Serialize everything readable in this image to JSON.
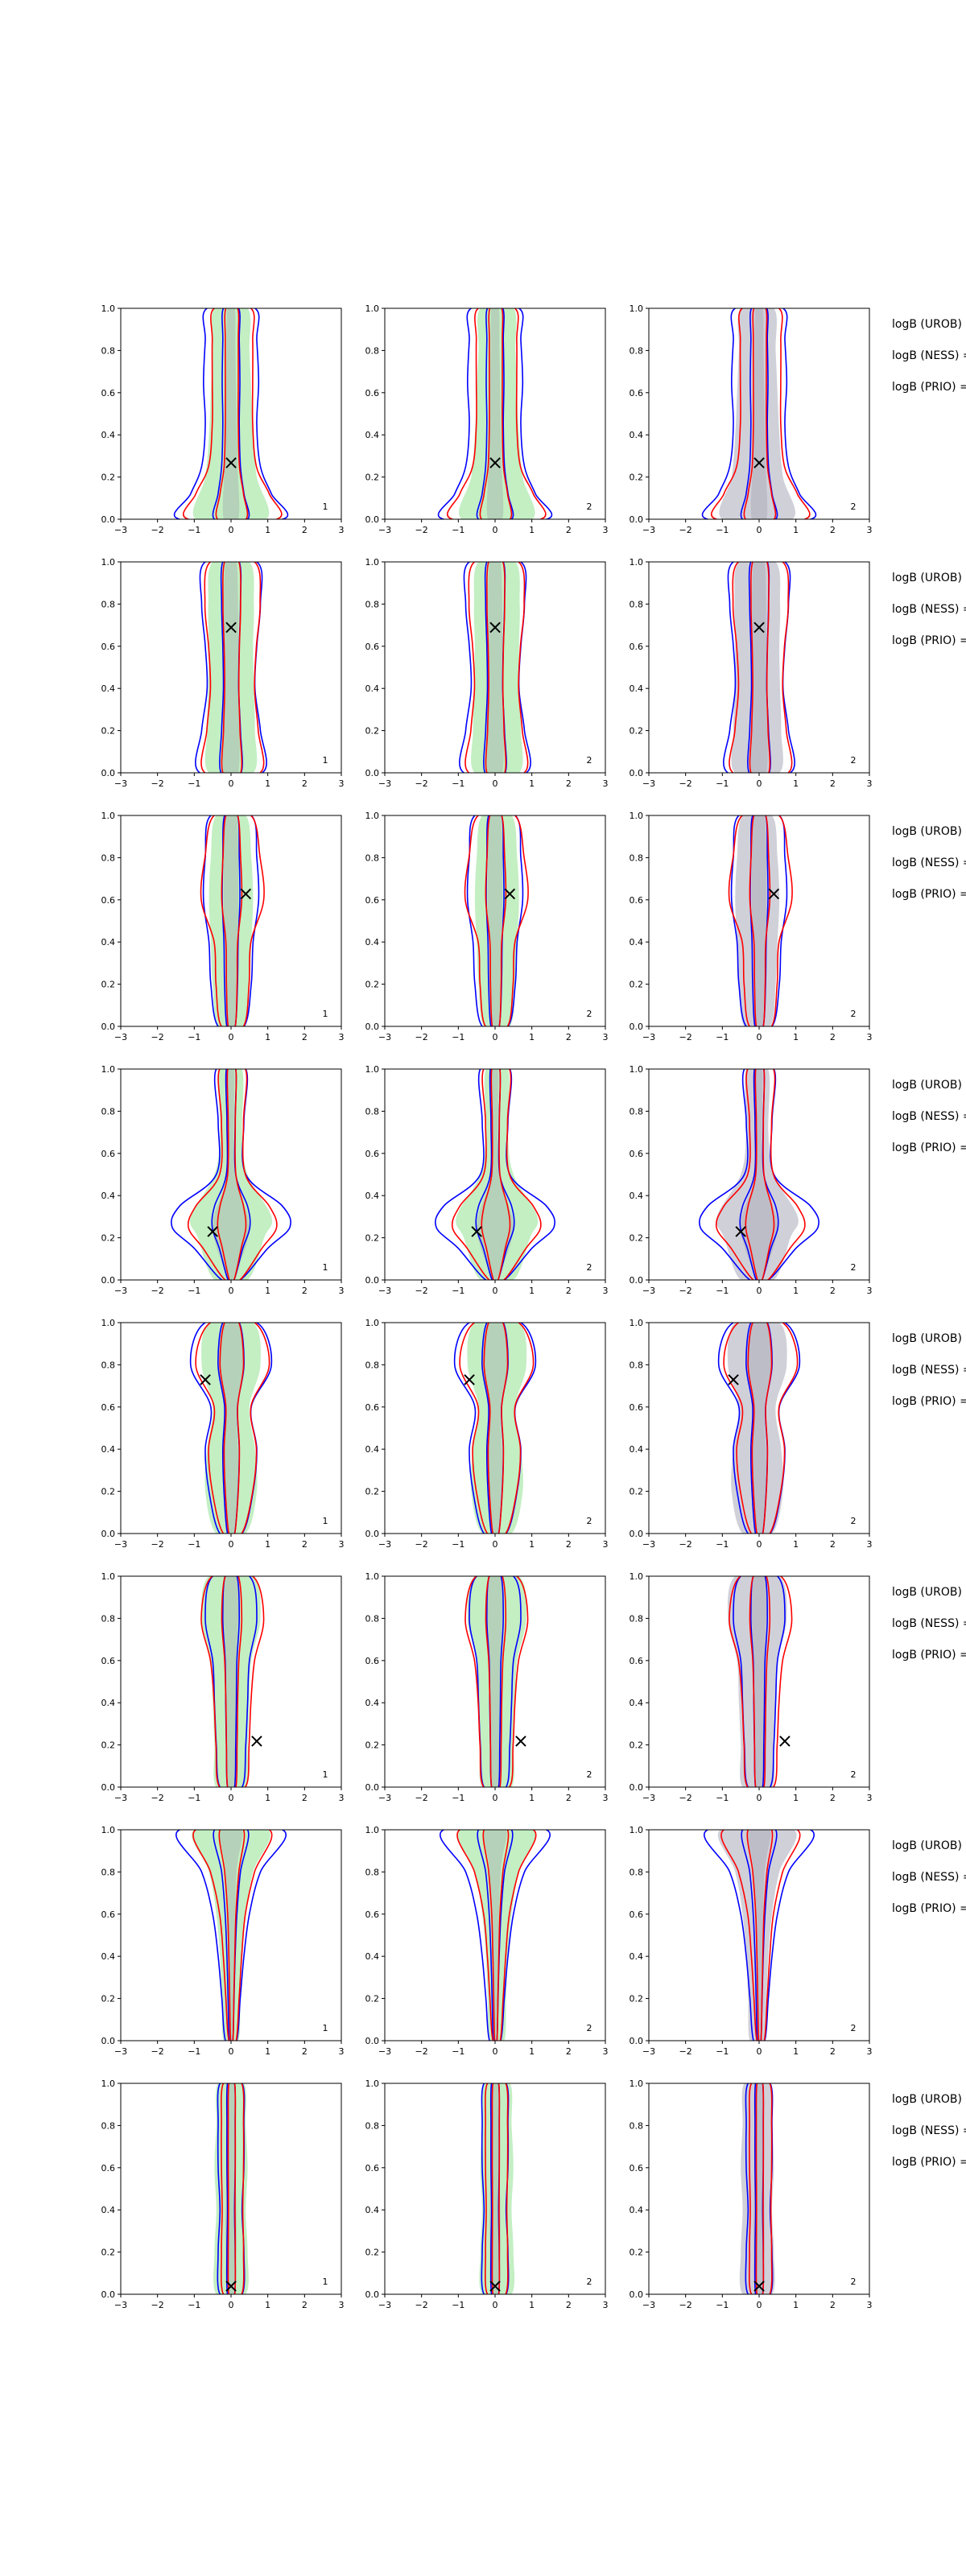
{
  "figure": {
    "columns": [
      {
        "corner_label": "1"
      },
      {
        "corner_label": "2"
      },
      {
        "corner_label": "2"
      }
    ],
    "side_labels": [
      "logB (UROB) =",
      "logB (NESS) =",
      "logB (PRIO) ="
    ],
    "marker_symbol": "×"
  },
  "colors": {
    "fill_green": "#b8ecb8",
    "fill_grey": "#c8c8d2",
    "inner_grey": "#9a9aa6",
    "line_blue": "#0000ff",
    "line_red": "#ff0000",
    "marker": "#000000"
  },
  "chart_data": {
    "type": "contour",
    "grid_rows": 8,
    "grid_cols": 3,
    "xlim": [
      -3,
      3
    ],
    "ylim": [
      0,
      1
    ],
    "xticks": [
      "−3",
      "−2",
      "−1",
      "0",
      "1",
      "2",
      "3"
    ],
    "yticks": [
      "0.0",
      "0.2",
      "0.4",
      "0.6",
      "0.8",
      "1.0"
    ],
    "panels": [
      {
        "row": 1,
        "marker": [
          0.0,
          0.27
        ]
      },
      {
        "row": 2,
        "marker": [
          0.0,
          0.69
        ]
      },
      {
        "row": 3,
        "marker": [
          0.4,
          0.63
        ]
      },
      {
        "row": 4,
        "marker": [
          -0.5,
          0.23
        ]
      },
      {
        "row": 5,
        "marker": [
          -0.7,
          0.73
        ]
      },
      {
        "row": 6,
        "marker": [
          0.7,
          0.22
        ]
      },
      {
        "row": 7,
        "marker": null
      },
      {
        "row": 8,
        "marker": [
          0.0,
          0.04
        ]
      }
    ],
    "shapes": [
      {
        "row": 1,
        "green": [
          [
            0.0,
            0.95
          ],
          [
            0.2,
            0.7
          ],
          [
            0.4,
            0.6
          ],
          [
            0.6,
            0.55
          ],
          [
            0.8,
            0.5
          ],
          [
            1.0,
            0.45
          ]
        ],
        "blue": [
          [
            0.0,
            1.4
          ],
          [
            0.12,
            1.1
          ],
          [
            0.25,
            0.8
          ],
          [
            0.45,
            0.7
          ],
          [
            0.65,
            0.75
          ],
          [
            0.85,
            0.7
          ],
          [
            1.0,
            0.65
          ]
        ],
        "red": [
          [
            0.0,
            1.2
          ],
          [
            0.12,
            1.0
          ],
          [
            0.25,
            0.65
          ],
          [
            0.45,
            0.55
          ],
          [
            0.65,
            0.55
          ],
          [
            0.85,
            0.55
          ],
          [
            1.0,
            0.5
          ]
        ],
        "inner": [
          [
            0.0,
            0.2
          ],
          [
            0.25,
            0.18
          ],
          [
            0.5,
            0.15
          ],
          [
            0.8,
            0.12
          ],
          [
            1.0,
            0.1
          ]
        ]
      },
      {
        "row": 2,
        "green": [
          [
            0.0,
            0.6
          ],
          [
            0.2,
            0.65
          ],
          [
            0.4,
            0.62
          ],
          [
            0.6,
            0.6
          ],
          [
            0.8,
            0.62
          ],
          [
            1.0,
            0.5
          ]
        ],
        "blue": [
          [
            0.0,
            0.85
          ],
          [
            0.2,
            0.8
          ],
          [
            0.4,
            0.65
          ],
          [
            0.6,
            0.7
          ],
          [
            0.8,
            0.8
          ],
          [
            1.0,
            0.7
          ]
        ],
        "red": [
          [
            0.0,
            0.75
          ],
          [
            0.2,
            0.7
          ],
          [
            0.4,
            0.6
          ],
          [
            0.6,
            0.65
          ],
          [
            0.8,
            0.75
          ],
          [
            1.0,
            0.6
          ]
        ],
        "inner": [
          [
            0.0,
            0.2
          ],
          [
            0.3,
            0.22
          ],
          [
            0.6,
            0.2
          ],
          [
            1.0,
            0.15
          ]
        ]
      },
      {
        "row": 3,
        "green": [
          [
            0.0,
            0.35
          ],
          [
            0.2,
            0.5
          ],
          [
            0.4,
            0.55
          ],
          [
            0.6,
            0.6
          ],
          [
            0.8,
            0.55
          ],
          [
            1.0,
            0.4
          ]
        ],
        "blue": [
          [
            0.0,
            0.35
          ],
          [
            0.2,
            0.55
          ],
          [
            0.4,
            0.6
          ],
          [
            0.6,
            0.75
          ],
          [
            0.8,
            0.7
          ],
          [
            1.0,
            0.55
          ]
        ],
        "red": [
          [
            0.0,
            0.3
          ],
          [
            0.2,
            0.45
          ],
          [
            0.4,
            0.5
          ],
          [
            0.6,
            0.85
          ],
          [
            0.8,
            0.75
          ],
          [
            1.0,
            0.5
          ]
        ],
        "inner": [
          [
            0.0,
            0.1
          ],
          [
            0.3,
            0.15
          ],
          [
            0.6,
            0.2
          ],
          [
            1.0,
            0.15
          ]
        ]
      },
      {
        "row": 4,
        "green": [
          [
            0.0,
            0.45
          ],
          [
            0.2,
            0.9
          ],
          [
            0.3,
            1.1
          ],
          [
            0.5,
            0.45
          ],
          [
            0.7,
            0.3
          ],
          [
            1.0,
            0.3
          ]
        ],
        "blue": [
          [
            0.0,
            0.25
          ],
          [
            0.15,
            1.0
          ],
          [
            0.25,
            1.6
          ],
          [
            0.35,
            1.4
          ],
          [
            0.5,
            0.4
          ],
          [
            0.75,
            0.35
          ],
          [
            1.0,
            0.4
          ]
        ],
        "red": [
          [
            0.0,
            0.2
          ],
          [
            0.15,
            0.8
          ],
          [
            0.25,
            1.2
          ],
          [
            0.35,
            1.0
          ],
          [
            0.5,
            0.35
          ],
          [
            0.75,
            0.3
          ],
          [
            1.0,
            0.35
          ]
        ],
        "inner": [
          [
            0.0,
            0.05
          ],
          [
            0.25,
            0.5
          ],
          [
            0.5,
            0.1
          ],
          [
            0.8,
            0.08
          ],
          [
            1.0,
            0.08
          ]
        ]
      },
      {
        "row": 5,
        "green": [
          [
            0.0,
            0.4
          ],
          [
            0.2,
            0.7
          ],
          [
            0.4,
            0.65
          ],
          [
            0.6,
            0.5
          ],
          [
            0.8,
            0.8
          ],
          [
            1.0,
            0.6
          ]
        ],
        "blue": [
          [
            0.0,
            0.3
          ],
          [
            0.2,
            0.6
          ],
          [
            0.4,
            0.7
          ],
          [
            0.6,
            0.55
          ],
          [
            0.8,
            1.1
          ],
          [
            1.0,
            0.7
          ]
        ],
        "red": [
          [
            0.0,
            0.25
          ],
          [
            0.2,
            0.55
          ],
          [
            0.4,
            0.65
          ],
          [
            0.6,
            0.5
          ],
          [
            0.8,
            1.0
          ],
          [
            1.0,
            0.6
          ]
        ],
        "inner": [
          [
            0.0,
            0.1
          ],
          [
            0.3,
            0.2
          ],
          [
            0.6,
            0.15
          ],
          [
            0.8,
            0.35
          ],
          [
            1.0,
            0.2
          ]
        ]
      },
      {
        "row": 6,
        "green": [
          [
            0.0,
            0.4
          ],
          [
            0.2,
            0.45
          ],
          [
            0.4,
            0.5
          ],
          [
            0.6,
            0.55
          ],
          [
            0.8,
            0.8
          ],
          [
            1.0,
            0.6
          ]
        ],
        "blue": [
          [
            0.0,
            0.3
          ],
          [
            0.2,
            0.4
          ],
          [
            0.4,
            0.45
          ],
          [
            0.6,
            0.5
          ],
          [
            0.8,
            0.7
          ],
          [
            1.0,
            0.5
          ]
        ],
        "red": [
          [
            0.0,
            0.35
          ],
          [
            0.2,
            0.45
          ],
          [
            0.4,
            0.5
          ],
          [
            0.6,
            0.6
          ],
          [
            0.8,
            0.85
          ],
          [
            1.0,
            0.55
          ]
        ],
        "inner": [
          [
            0.0,
            0.1
          ],
          [
            0.3,
            0.12
          ],
          [
            0.6,
            0.15
          ],
          [
            1.0,
            0.2
          ]
        ]
      },
      {
        "row": 7,
        "green": [
          [
            0.0,
            0.2
          ],
          [
            0.2,
            0.25
          ],
          [
            0.4,
            0.3
          ],
          [
            0.6,
            0.4
          ],
          [
            0.8,
            0.6
          ],
          [
            1.0,
            1.0
          ]
        ],
        "blue": [
          [
            0.0,
            0.15
          ],
          [
            0.2,
            0.25
          ],
          [
            0.4,
            0.35
          ],
          [
            0.6,
            0.5
          ],
          [
            0.8,
            0.8
          ],
          [
            1.0,
            1.4
          ]
        ],
        "red": [
          [
            0.0,
            0.1
          ],
          [
            0.2,
            0.18
          ],
          [
            0.4,
            0.25
          ],
          [
            0.6,
            0.35
          ],
          [
            0.8,
            0.6
          ],
          [
            1.0,
            1.0
          ]
        ],
        "inner": [
          [
            0.0,
            0.05
          ],
          [
            0.4,
            0.08
          ],
          [
            0.8,
            0.15
          ],
          [
            1.0,
            0.3
          ]
        ]
      },
      {
        "row": 8,
        "green": [
          [
            0.0,
            0.4
          ],
          [
            0.2,
            0.45
          ],
          [
            0.4,
            0.4
          ],
          [
            0.6,
            0.45
          ],
          [
            0.8,
            0.4
          ],
          [
            1.0,
            0.35
          ]
        ],
        "blue": [
          [
            0.0,
            0.3
          ],
          [
            0.2,
            0.35
          ],
          [
            0.4,
            0.3
          ],
          [
            0.6,
            0.35
          ],
          [
            0.8,
            0.35
          ],
          [
            1.0,
            0.3
          ]
        ],
        "red": [
          [
            0.0,
            0.25
          ],
          [
            0.2,
            0.3
          ],
          [
            0.4,
            0.28
          ],
          [
            0.6,
            0.3
          ],
          [
            0.8,
            0.3
          ],
          [
            1.0,
            0.25
          ]
        ],
        "inner": [
          [
            0.0,
            0.1
          ],
          [
            0.3,
            0.15
          ],
          [
            0.6,
            0.12
          ],
          [
            1.0,
            0.1
          ]
        ]
      }
    ]
  }
}
